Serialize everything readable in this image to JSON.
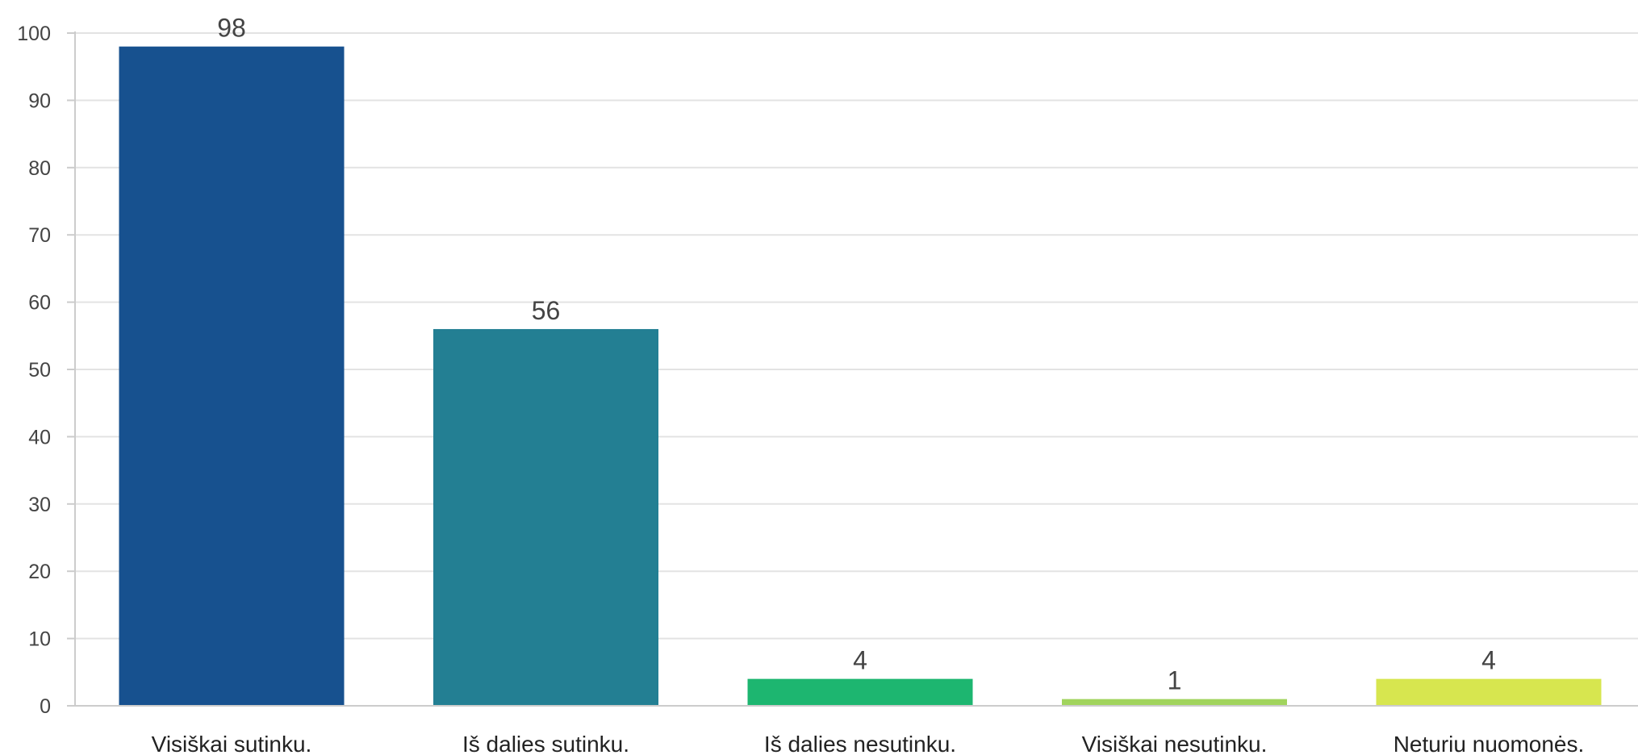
{
  "chart_data": {
    "type": "bar",
    "title": "",
    "xlabel": "",
    "ylabel": "",
    "categories": [
      "Visiškai sutinku.",
      "Iš dalies sutinku.",
      "Iš dalies nesutinku.",
      "Visiškai nesutinku.",
      "Neturiu nuomonės."
    ],
    "values": [
      98,
      56,
      4,
      1,
      4
    ],
    "colors": [
      "#17518f",
      "#237f93",
      "#1db670",
      "#a1d45d",
      "#d7e64f"
    ],
    "ylim": [
      0,
      100
    ],
    "yticks": [
      0,
      10,
      20,
      30,
      40,
      50,
      60,
      70,
      80,
      90,
      100
    ],
    "grid": true,
    "data_labels": true
  }
}
